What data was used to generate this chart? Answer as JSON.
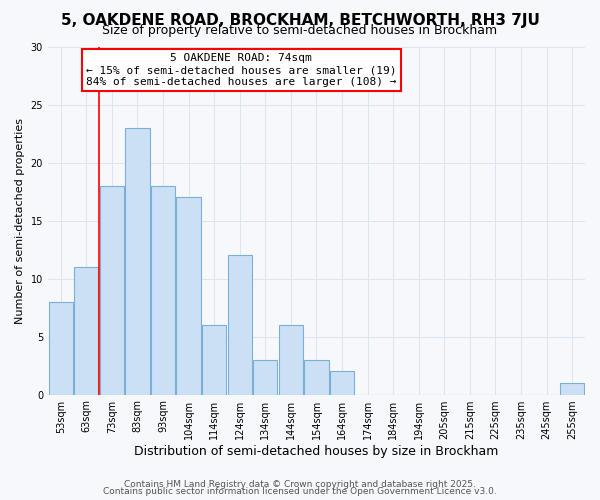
{
  "title1": "5, OAKDENE ROAD, BROCKHAM, BETCHWORTH, RH3 7JU",
  "title2": "Size of property relative to semi-detached houses in Brockham",
  "xlabel": "Distribution of semi-detached houses by size in Brockham",
  "ylabel": "Number of semi-detached properties",
  "categories": [
    "53sqm",
    "63sqm",
    "73sqm",
    "83sqm",
    "93sqm",
    "104sqm",
    "114sqm",
    "124sqm",
    "134sqm",
    "144sqm",
    "154sqm",
    "164sqm",
    "174sqm",
    "184sqm",
    "194sqm",
    "205sqm",
    "215sqm",
    "225sqm",
    "235sqm",
    "245sqm",
    "255sqm"
  ],
  "values": [
    8,
    11,
    18,
    23,
    18,
    17,
    6,
    12,
    3,
    6,
    3,
    2,
    0,
    0,
    0,
    0,
    0,
    0,
    0,
    0,
    1
  ],
  "bar_color": "#cce0f5",
  "bar_edge_color": "#7ab0d8",
  "ann_line1": "5 OAKDENE ROAD: 74sqm",
  "ann_line2": "← 15% of semi-detached houses are smaller (19)",
  "ann_line3": "84% of semi-detached houses are larger (108) →",
  "vline_x": 2.0,
  "ylim_max": 30,
  "yticks": [
    0,
    5,
    10,
    15,
    20,
    25,
    30
  ],
  "footer1": "Contains HM Land Registry data © Crown copyright and database right 2025.",
  "footer2": "Contains public sector information licensed under the Open Government Licence v3.0.",
  "bg_color": "#f7f8fc",
  "grid_color": "#dde6f0",
  "title1_fontsize": 11,
  "title2_fontsize": 9,
  "xlabel_fontsize": 9,
  "ylabel_fontsize": 8,
  "tick_fontsize": 7,
  "ann_fontsize": 8,
  "footer_fontsize": 6.5
}
